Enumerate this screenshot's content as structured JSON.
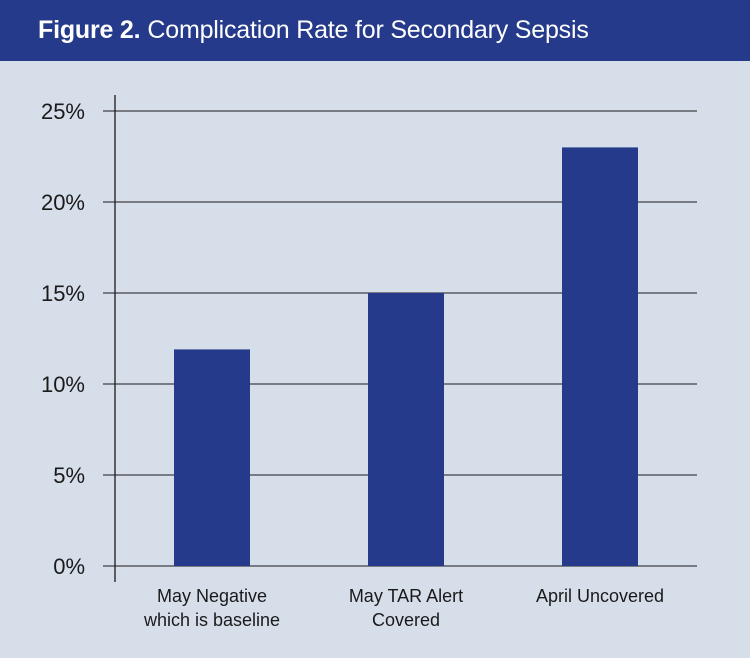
{
  "header": {
    "figure_label": "Figure 2.",
    "title": "Complication Rate for Secondary Sepsis"
  },
  "colors": {
    "header_bg": "#253a8a",
    "background": "#d6deea",
    "bar": "#253a8a"
  },
  "chart_data": {
    "type": "bar",
    "title": "Figure 2. Complication Rate for Secondary Sepsis",
    "xlabel": "",
    "ylabel": "",
    "categories": [
      [
        "May Negative",
        "which is baseline"
      ],
      [
        "May TAR Alert",
        "Covered"
      ],
      [
        "April Uncovered"
      ]
    ],
    "values": [
      11.9,
      15.0,
      23.0
    ],
    "ylim": [
      0,
      25
    ],
    "yticks": [
      0,
      5,
      10,
      15,
      20,
      25
    ],
    "ytick_labels": [
      "0%",
      "5%",
      "10%",
      "15%",
      "20%",
      "25%"
    ],
    "grid": true,
    "legend": "none"
  }
}
